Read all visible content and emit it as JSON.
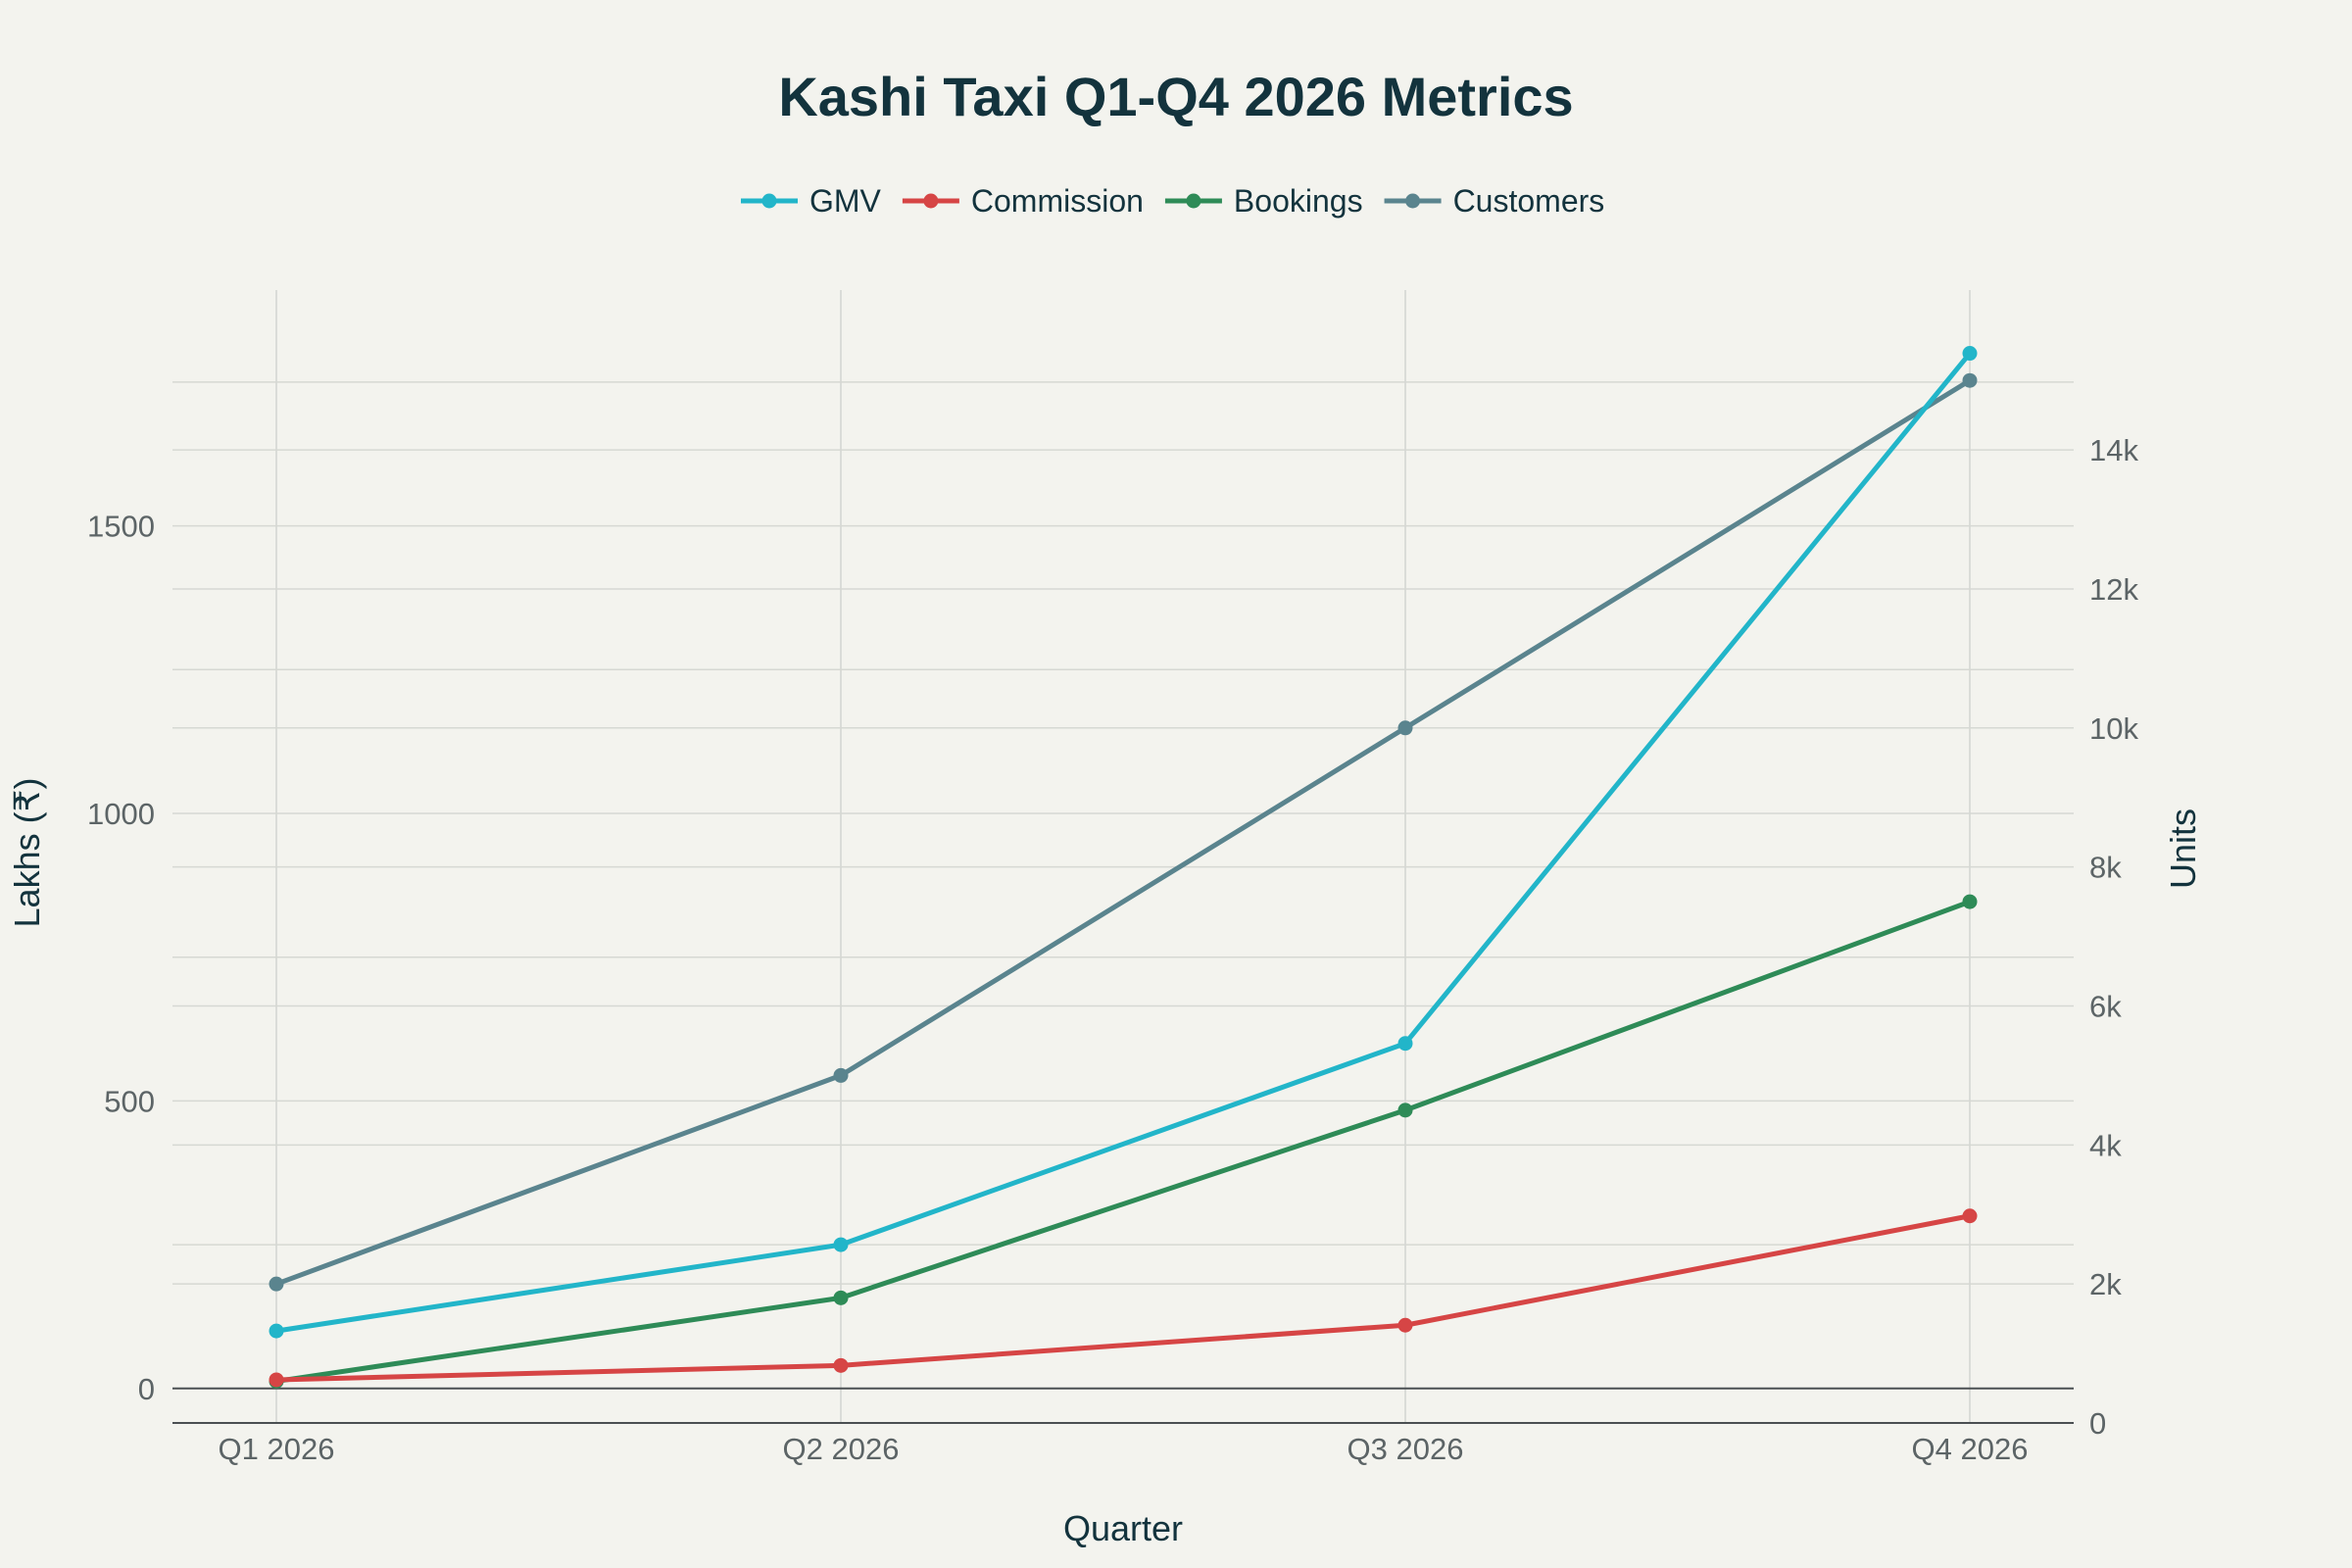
{
  "chart_data": {
    "type": "line",
    "title": "Kashi Taxi Q1-Q4 2026 Metrics",
    "xlabel": "Quarter",
    "ylabel": "Lakhs (₹)",
    "y2label": "Units",
    "categories": [
      "Q1 2026",
      "Q2 2026",
      "Q3 2026",
      "Q4 2026"
    ],
    "ylim": [
      -60,
      1910
    ],
    "y2lim": [
      0,
      16300
    ],
    "yticks": [
      0,
      500,
      1000,
      1500
    ],
    "y2ticks": [
      0,
      2000,
      4000,
      6000,
      8000,
      10000,
      12000,
      14000
    ],
    "y2ticklabels": [
      "0",
      "2k",
      "4k",
      "6k",
      "8k",
      "10k",
      "12k",
      "14k"
    ],
    "grid": true,
    "legend_position": "top-center",
    "series": [
      {
        "name": "GMV",
        "axis": "left",
        "color": "#22b5c9",
        "values": [
          100,
          250,
          600,
          1800
        ]
      },
      {
        "name": "Commission",
        "axis": "left",
        "color": "#d64545",
        "values": [
          15,
          40,
          110,
          300
        ]
      },
      {
        "name": "Bookings",
        "axis": "right",
        "color": "#2e8b57",
        "values": [
          600,
          1800,
          4500,
          7500
        ]
      },
      {
        "name": "Customers",
        "axis": "right",
        "color": "#5a848e",
        "values": [
          2000,
          5000,
          10000,
          15000
        ]
      }
    ]
  }
}
